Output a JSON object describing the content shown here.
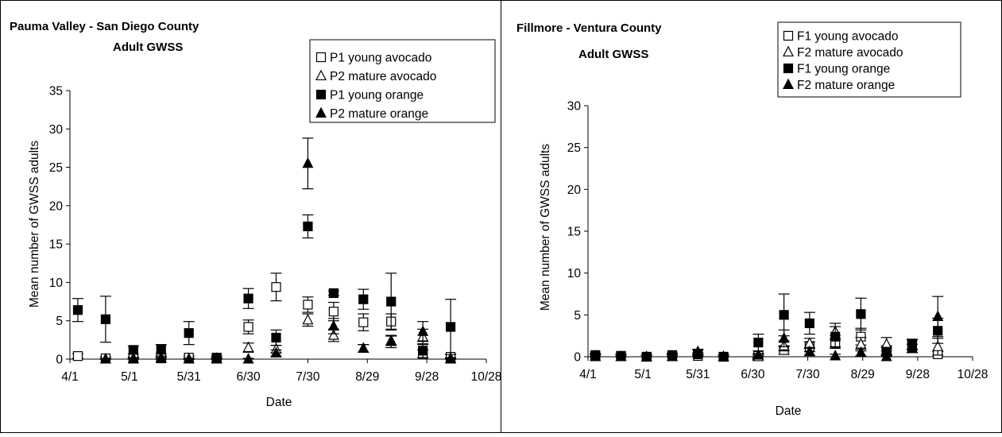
{
  "chart_data": [
    {
      "type": "scatter",
      "title": "Pauma Valley - San Diego County",
      "subtitle": "Adult GWSS",
      "xlabel": "Date",
      "ylabel": "Mean number of GWSS adults",
      "ylim": [
        0,
        35
      ],
      "yticks": [
        0,
        5,
        10,
        15,
        20,
        25,
        30,
        35
      ],
      "xlim": [
        "4/1",
        "10/28"
      ],
      "xticks": [
        "4/1",
        "5/1",
        "5/31",
        "6/30",
        "7/30",
        "8/29",
        "9/28",
        "10/28"
      ],
      "error_bars": true,
      "legend_position": "top-right",
      "series": [
        {
          "name": "P1 young avocado",
          "marker": "open-square",
          "points": [
            {
              "x": "4/5",
              "y": 0.4,
              "err": 0.3
            },
            {
              "x": "4/19",
              "y": 0.1,
              "err": 0.2
            },
            {
              "x": "5/3",
              "y": 0.1,
              "err": 0.2
            },
            {
              "x": "5/17",
              "y": 0.1,
              "err": 0.2
            },
            {
              "x": "5/31",
              "y": 0.2,
              "err": 0.2
            },
            {
              "x": "6/14",
              "y": 0.1,
              "err": 0.1
            },
            {
              "x": "6/30",
              "y": 4.2,
              "err": 0.9
            },
            {
              "x": "7/14",
              "y": 9.4,
              "err": 1.8
            },
            {
              "x": "7/30",
              "y": 7.1,
              "err": 1.0
            },
            {
              "x": "8/12",
              "y": 6.2,
              "err": 1.2
            },
            {
              "x": "8/27",
              "y": 4.8,
              "err": 1.1
            },
            {
              "x": "9/10",
              "y": 4.9,
              "err": 1.0
            },
            {
              "x": "9/26",
              "y": 0.7,
              "err": 0.5
            },
            {
              "x": "10/10",
              "y": 0.3,
              "err": 0.3
            }
          ]
        },
        {
          "name": "P2 mature avocado",
          "marker": "open-triangle",
          "points": [
            {
              "x": "4/19",
              "y": 0.0,
              "err": 0.1
            },
            {
              "x": "5/3",
              "y": 0.1,
              "err": 0.1
            },
            {
              "x": "5/17",
              "y": 0.2,
              "err": 0.2
            },
            {
              "x": "5/31",
              "y": 0.0,
              "err": 0.1
            },
            {
              "x": "6/14",
              "y": 0.1,
              "err": 0.1
            },
            {
              "x": "6/30",
              "y": 1.5,
              "err": 0.6
            },
            {
              "x": "7/14",
              "y": 1.3,
              "err": 0.5
            },
            {
              "x": "7/30",
              "y": 5.1,
              "err": 0.8
            },
            {
              "x": "8/12",
              "y": 3.1,
              "err": 0.8
            },
            {
              "x": "8/27",
              "y": 1.4,
              "err": 0.5
            },
            {
              "x": "9/10",
              "y": 2.3,
              "err": 0.8
            },
            {
              "x": "9/26",
              "y": 2.9,
              "err": 1.0
            },
            {
              "x": "10/10",
              "y": 0.1,
              "err": 0.1
            }
          ]
        },
        {
          "name": "P1 young orange",
          "marker": "filled-square",
          "points": [
            {
              "x": "4/5",
              "y": 6.4,
              "err": 1.5
            },
            {
              "x": "4/19",
              "y": 5.2,
              "err": 3.0
            },
            {
              "x": "5/3",
              "y": 1.2,
              "err": 0.5
            },
            {
              "x": "5/17",
              "y": 1.3,
              "err": 0.6
            },
            {
              "x": "5/31",
              "y": 3.4,
              "err": 1.5
            },
            {
              "x": "6/14",
              "y": 0.2,
              "err": 0.2
            },
            {
              "x": "6/30",
              "y": 7.9,
              "err": 1.3
            },
            {
              "x": "7/14",
              "y": 2.8,
              "err": 1.0
            },
            {
              "x": "7/30",
              "y": 17.3,
              "err": 1.5
            },
            {
              "x": "8/12",
              "y": 8.6,
              "err": 0.3
            },
            {
              "x": "8/27",
              "y": 7.8,
              "err": 1.3
            },
            {
              "x": "9/10",
              "y": 7.5,
              "err": 3.7
            },
            {
              "x": "9/26",
              "y": 1.1,
              "err": 0.9
            },
            {
              "x": "10/10",
              "y": 4.2,
              "err": 3.6
            }
          ]
        },
        {
          "name": "P2 mature orange",
          "marker": "filled-triangle",
          "points": [
            {
              "x": "4/19",
              "y": 0.0,
              "err": 0.1
            },
            {
              "x": "5/3",
              "y": 0.0,
              "err": 0.1
            },
            {
              "x": "5/17",
              "y": 0.1,
              "err": 0.1
            },
            {
              "x": "5/31",
              "y": 0.0,
              "err": 0.1
            },
            {
              "x": "6/14",
              "y": 0.0,
              "err": 0.1
            },
            {
              "x": "6/30",
              "y": 0.0,
              "err": 0.1
            },
            {
              "x": "7/14",
              "y": 0.8,
              "err": 0.4
            },
            {
              "x": "7/30",
              "y": 25.5,
              "err": 3.3
            },
            {
              "x": "8/12",
              "y": 4.3,
              "err": 1.0
            },
            {
              "x": "8/27",
              "y": 1.4,
              "err": 0.5
            },
            {
              "x": "9/10",
              "y": 2.4,
              "err": 0.6
            },
            {
              "x": "9/26",
              "y": 3.6,
              "err": 1.3
            },
            {
              "x": "10/10",
              "y": 0.0,
              "err": 0.1
            }
          ]
        }
      ]
    },
    {
      "type": "scatter",
      "title": "Fillmore - Ventura County",
      "subtitle": "Adult GWSS",
      "xlabel": "Date",
      "ylabel": "Mean number of GWSS adults",
      "ylim": [
        0,
        30
      ],
      "yticks": [
        0,
        5,
        10,
        15,
        20,
        25,
        30
      ],
      "xlim": [
        "4/1",
        "10/28"
      ],
      "xticks": [
        "4/1",
        "5/1",
        "5/31",
        "6/30",
        "7/30",
        "8/29",
        "9/28",
        "10/28"
      ],
      "error_bars": true,
      "legend_position": "top-right",
      "series": [
        {
          "name": "F1 young avocado",
          "marker": "open-square",
          "points": [
            {
              "x": "4/5",
              "y": 0.1,
              "err": 0.2
            },
            {
              "x": "4/19",
              "y": 0.1,
              "err": 0.2
            },
            {
              "x": "5/3",
              "y": 0.0,
              "err": 0.2
            },
            {
              "x": "5/17",
              "y": 0.1,
              "err": 0.2
            },
            {
              "x": "5/31",
              "y": 0.1,
              "err": 0.2
            },
            {
              "x": "6/14",
              "y": 0.0,
              "err": 0.2
            },
            {
              "x": "7/3",
              "y": 0.1,
              "err": 0.2
            },
            {
              "x": "7/17",
              "y": 0.8,
              "err": 0.5
            },
            {
              "x": "7/31",
              "y": 1.2,
              "err": 0.6
            },
            {
              "x": "8/14",
              "y": 1.6,
              "err": 0.6
            },
            {
              "x": "8/28",
              "y": 2.4,
              "err": 1.0
            },
            {
              "x": "9/11",
              "y": 0.8,
              "err": 0.5
            },
            {
              "x": "9/25",
              "y": 1.4,
              "err": 0.6
            },
            {
              "x": "10/9",
              "y": 0.3,
              "err": 0.3
            }
          ]
        },
        {
          "name": "F2 mature avocado",
          "marker": "open-triangle",
          "points": [
            {
              "x": "4/5",
              "y": 0.1,
              "err": 0.2
            },
            {
              "x": "4/19",
              "y": 0.0,
              "err": 0.2
            },
            {
              "x": "5/3",
              "y": 0.0,
              "err": 0.2
            },
            {
              "x": "5/17",
              "y": 0.0,
              "err": 0.2
            },
            {
              "x": "5/31",
              "y": 0.6,
              "err": 0.3
            },
            {
              "x": "6/14",
              "y": 0.0,
              "err": 0.2
            },
            {
              "x": "7/3",
              "y": 0.0,
              "err": 0.2
            },
            {
              "x": "7/17",
              "y": 1.3,
              "err": 0.6
            },
            {
              "x": "7/31",
              "y": 1.6,
              "err": 0.6
            },
            {
              "x": "8/14",
              "y": 3.0,
              "err": 1.0
            },
            {
              "x": "8/28",
              "y": 1.5,
              "err": 0.8
            },
            {
              "x": "9/11",
              "y": 1.5,
              "err": 0.8
            },
            {
              "x": "9/25",
              "y": 1.0,
              "err": 0.5
            },
            {
              "x": "10/9",
              "y": 1.2,
              "err": 1.0
            }
          ]
        },
        {
          "name": "F1 young orange",
          "marker": "filled-square",
          "points": [
            {
              "x": "4/5",
              "y": 0.2,
              "err": 0.2
            },
            {
              "x": "4/19",
              "y": 0.1,
              "err": 0.2
            },
            {
              "x": "5/3",
              "y": 0.0,
              "err": 0.2
            },
            {
              "x": "5/17",
              "y": 0.2,
              "err": 0.2
            },
            {
              "x": "5/31",
              "y": 0.3,
              "err": 0.2
            },
            {
              "x": "6/14",
              "y": 0.0,
              "err": 0.2
            },
            {
              "x": "7/3",
              "y": 1.7,
              "err": 1.0
            },
            {
              "x": "7/17",
              "y": 5.0,
              "err": 2.5
            },
            {
              "x": "7/31",
              "y": 4.0,
              "err": 1.3
            },
            {
              "x": "8/14",
              "y": 2.4,
              "err": 1.2
            },
            {
              "x": "8/28",
              "y": 5.1,
              "err": 1.9
            },
            {
              "x": "9/11",
              "y": 0.6,
              "err": 0.5
            },
            {
              "x": "9/25",
              "y": 1.5,
              "err": 0.6
            },
            {
              "x": "10/9",
              "y": 3.1,
              "err": 1.5
            }
          ]
        },
        {
          "name": "F2 mature orange",
          "marker": "filled-triangle",
          "points": [
            {
              "x": "4/5",
              "y": 0.0,
              "err": 0.2
            },
            {
              "x": "4/19",
              "y": 0.0,
              "err": 0.2
            },
            {
              "x": "5/3",
              "y": 0.0,
              "err": 0.2
            },
            {
              "x": "5/17",
              "y": 0.0,
              "err": 0.2
            },
            {
              "x": "5/31",
              "y": 0.5,
              "err": 0.3
            },
            {
              "x": "6/14",
              "y": 0.0,
              "err": 0.2
            },
            {
              "x": "7/3",
              "y": 0.2,
              "err": 0.2
            },
            {
              "x": "7/17",
              "y": 2.2,
              "err": 1.0
            },
            {
              "x": "7/31",
              "y": 0.6,
              "err": 0.4
            },
            {
              "x": "8/14",
              "y": 0.1,
              "err": 0.2
            },
            {
              "x": "8/28",
              "y": 0.5,
              "err": 0.4
            },
            {
              "x": "9/11",
              "y": 0.0,
              "err": 0.2
            },
            {
              "x": "9/25",
              "y": 1.0,
              "err": 0.5
            },
            {
              "x": "10/9",
              "y": 4.8,
              "err": 2.4
            }
          ]
        }
      ]
    }
  ]
}
